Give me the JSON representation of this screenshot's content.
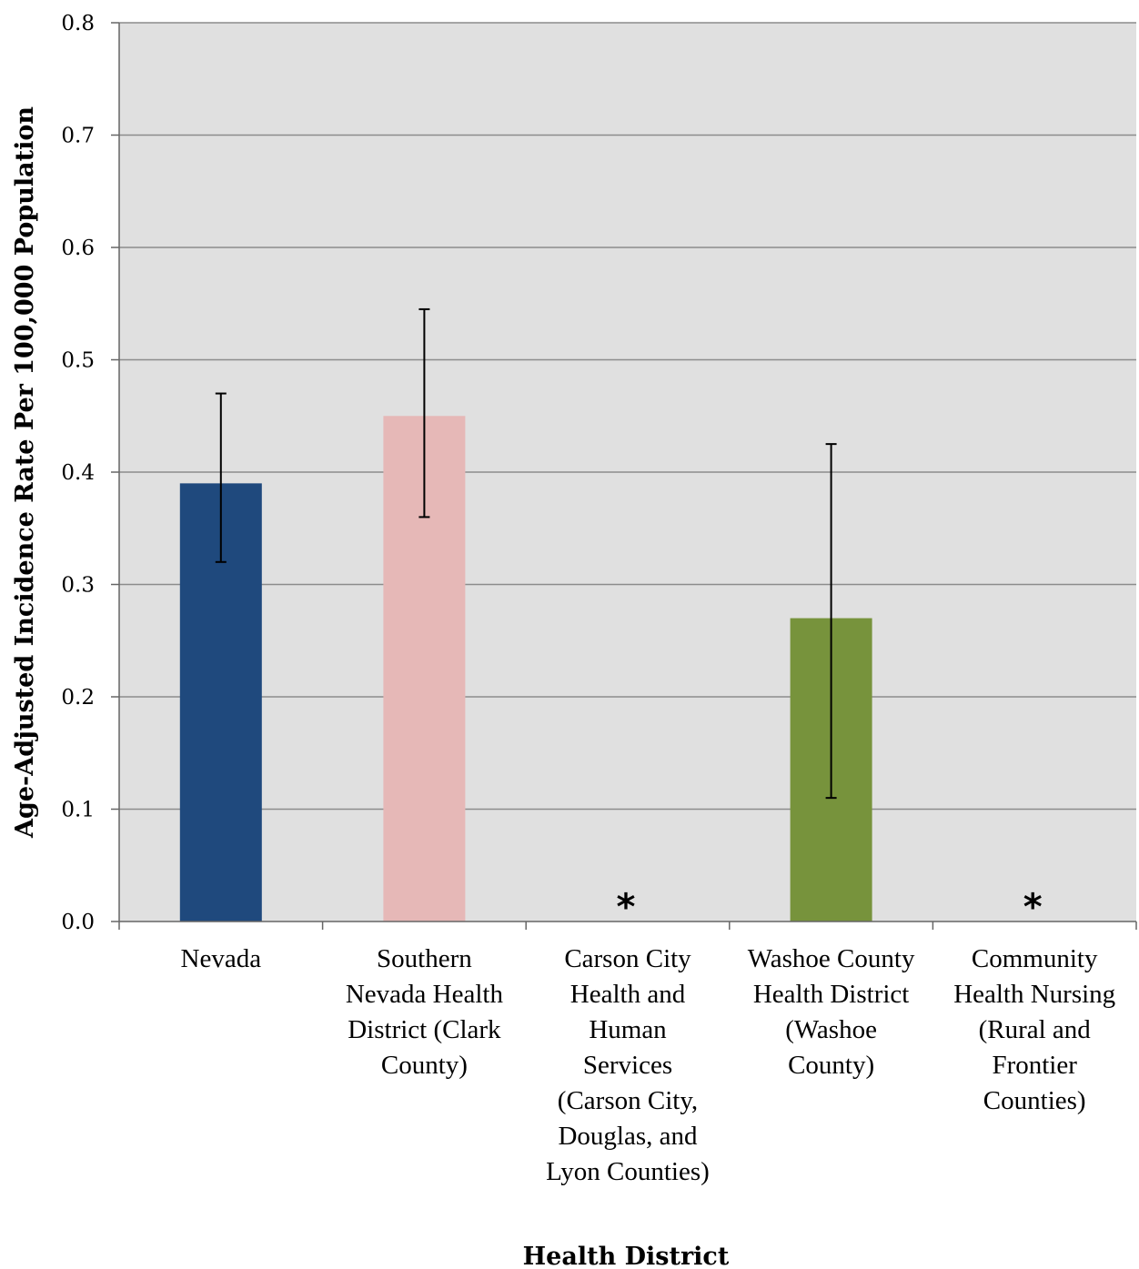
{
  "chart_data": {
    "type": "bar",
    "title": "",
    "xlabel": "Health District",
    "ylabel": "Age-Adjusted Incidence Rate Per 100,000 Population",
    "ylim": [
      0,
      0.8
    ],
    "yticks": [
      "0.0",
      "0.1",
      "0.2",
      "0.3",
      "0.4",
      "0.5",
      "0.6",
      "0.7",
      "0.8"
    ],
    "grid": true,
    "legend": "none",
    "categories": [
      [
        "Nevada"
      ],
      [
        "Southern",
        "Nevada Health",
        "District (Clark",
        "County)"
      ],
      [
        "Carson City",
        "Health and",
        "Human",
        "Services",
        "(Carson City,",
        "Douglas, and",
        "Lyon Counties)"
      ],
      [
        "Washoe County",
        "Health District",
        "(Washoe",
        "County)"
      ],
      [
        "Community",
        "Health Nursing",
        "(Rural and",
        "Frontier",
        "Counties)"
      ]
    ],
    "values": [
      0.39,
      0.45,
      null,
      0.27,
      null
    ],
    "error_low": [
      0.32,
      0.36,
      null,
      0.11,
      null
    ],
    "error_high": [
      0.47,
      0.545,
      null,
      0.425,
      null
    ],
    "suppressed_marker": "*",
    "colors": [
      "#1f497d",
      "#e6b8b7",
      null,
      "#77933c",
      null
    ],
    "plot_background": "#e0e0e0",
    "grid_color": "#8c8c8c"
  }
}
